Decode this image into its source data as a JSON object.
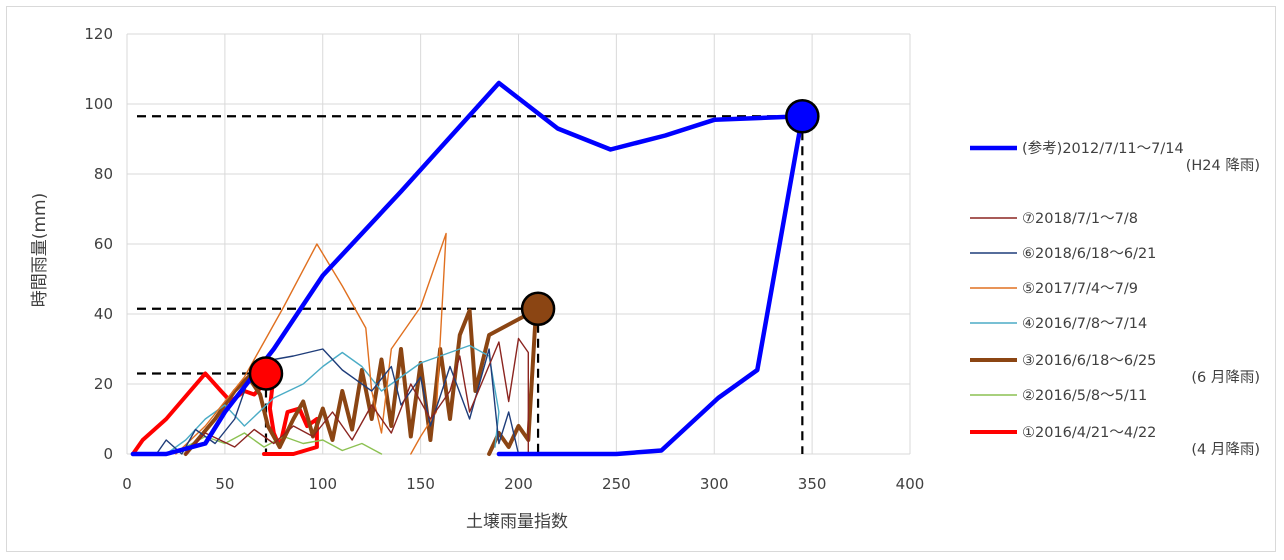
{
  "chart_data": {
    "type": "line",
    "title": "",
    "xlabel": "土壌雨量指数",
    "ylabel": "時間雨量(mm)",
    "xlim": [
      0,
      400
    ],
    "ylim": [
      0,
      120
    ],
    "x_ticks": [
      "0",
      "50",
      "100",
      "150",
      "200",
      "250",
      "300",
      "350",
      "400"
    ],
    "y_ticks": [
      "0",
      "20",
      "40",
      "60",
      "80",
      "100",
      "120"
    ],
    "grid": true,
    "legend_position": "right",
    "series": [
      {
        "name": "(参考)2012/7/11〜7/14",
        "note": "(H24 降雨)",
        "color": "#0000ff",
        "width": 4.5,
        "points": [
          [
            3,
            0
          ],
          [
            20,
            0
          ],
          [
            40,
            3
          ],
          [
            50,
            12
          ],
          [
            75,
            30
          ],
          [
            100,
            51
          ],
          [
            140,
            75
          ],
          [
            190,
            106
          ],
          [
            220,
            93
          ],
          [
            247,
            87
          ],
          [
            275,
            91
          ],
          [
            300,
            95.5
          ],
          [
            345,
            96.5
          ],
          [
            345,
            96.5
          ],
          [
            322,
            24
          ],
          [
            302,
            16
          ],
          [
            273,
            1
          ],
          [
            250,
            0
          ],
          [
            210,
            0
          ],
          [
            190,
            0
          ]
        ]
      },
      {
        "name": "⑦2018/7/1〜7/8",
        "color": "#8b2520",
        "width": 1.4,
        "points": [
          [
            30,
            0
          ],
          [
            40,
            6
          ],
          [
            55,
            2
          ],
          [
            65,
            7
          ],
          [
            75,
            3
          ],
          [
            85,
            8
          ],
          [
            95,
            5
          ],
          [
            105,
            12
          ],
          [
            115,
            4
          ],
          [
            125,
            14
          ],
          [
            135,
            6
          ],
          [
            145,
            20
          ],
          [
            155,
            10
          ],
          [
            165,
            18
          ],
          [
            170,
            28
          ],
          [
            175,
            12
          ],
          [
            190,
            32
          ],
          [
            195,
            15
          ],
          [
            200,
            33
          ],
          [
            205,
            29
          ],
          [
            205,
            0
          ]
        ]
      },
      {
        "name": "⑥2018/6/18〜6/21",
        "color": "#1f3d7a",
        "width": 1.4,
        "points": [
          [
            15,
            0
          ],
          [
            20,
            4
          ],
          [
            28,
            0
          ],
          [
            35,
            7
          ],
          [
            45,
            3
          ],
          [
            55,
            10
          ],
          [
            65,
            26
          ],
          [
            85,
            28
          ],
          [
            100,
            30
          ],
          [
            110,
            24
          ],
          [
            125,
            18
          ],
          [
            135,
            25
          ],
          [
            140,
            14
          ],
          [
            150,
            22
          ],
          [
            155,
            8
          ],
          [
            165,
            25
          ],
          [
            175,
            10
          ],
          [
            185,
            30
          ],
          [
            190,
            3
          ],
          [
            195,
            12
          ],
          [
            200,
            0
          ]
        ]
      },
      {
        "name": "⑤2017/7/4〜7/9",
        "color": "#e07020",
        "width": 1.4,
        "points": [
          [
            25,
            0
          ],
          [
            40,
            8
          ],
          [
            60,
            22
          ],
          [
            70,
            32
          ],
          [
            80,
            42
          ],
          [
            97,
            60
          ],
          [
            110,
            48
          ],
          [
            122,
            36
          ],
          [
            125,
            18
          ],
          [
            130,
            6
          ],
          [
            135,
            30
          ],
          [
            150,
            42
          ],
          [
            163,
            63
          ],
          [
            158,
            12
          ],
          [
            150,
            5
          ],
          [
            145,
            0
          ]
        ]
      },
      {
        "name": "④2016/7/8〜7/14",
        "color": "#4bacc6",
        "width": 1.4,
        "points": [
          [
            20,
            0
          ],
          [
            30,
            4
          ],
          [
            40,
            10
          ],
          [
            50,
            14
          ],
          [
            60,
            8
          ],
          [
            75,
            16
          ],
          [
            90,
            20
          ],
          [
            100,
            25
          ],
          [
            110,
            29
          ],
          [
            120,
            25
          ],
          [
            130,
            18
          ],
          [
            140,
            22
          ],
          [
            150,
            26
          ],
          [
            165,
            29
          ],
          [
            175,
            31
          ],
          [
            185,
            28
          ],
          [
            190,
            12
          ],
          [
            188,
            2
          ]
        ]
      },
      {
        "name": "③2016/6/18〜6/25",
        "note": "(6 月降雨)",
        "color": "#8b4513",
        "width": 4,
        "points": [
          [
            30,
            0
          ],
          [
            45,
            10
          ],
          [
            55,
            18
          ],
          [
            62,
            22
          ],
          [
            68,
            17
          ],
          [
            72,
            8
          ],
          [
            78,
            2
          ],
          [
            85,
            10
          ],
          [
            90,
            15
          ],
          [
            95,
            5
          ],
          [
            100,
            13
          ],
          [
            105,
            4
          ],
          [
            110,
            18
          ],
          [
            115,
            7
          ],
          [
            120,
            24
          ],
          [
            125,
            10
          ],
          [
            130,
            27
          ],
          [
            135,
            8
          ],
          [
            140,
            30
          ],
          [
            145,
            5
          ],
          [
            150,
            26
          ],
          [
            155,
            4
          ],
          [
            160,
            30
          ],
          [
            165,
            10
          ],
          [
            170,
            34
          ],
          [
            175,
            41
          ],
          [
            178,
            18
          ],
          [
            185,
            34
          ],
          [
            195,
            37
          ],
          [
            205,
            40
          ],
          [
            209,
            41.5
          ],
          [
            205,
            4
          ],
          [
            200,
            8
          ],
          [
            195,
            2
          ],
          [
            190,
            6
          ],
          [
            185,
            0
          ]
        ]
      },
      {
        "name": "②2016/5/8〜5/11",
        "color": "#8cc152",
        "width": 1.4,
        "points": [
          [
            20,
            0
          ],
          [
            30,
            2
          ],
          [
            40,
            5
          ],
          [
            50,
            3
          ],
          [
            60,
            6
          ],
          [
            70,
            2
          ],
          [
            80,
            5
          ],
          [
            90,
            3
          ],
          [
            100,
            4
          ],
          [
            110,
            1
          ],
          [
            120,
            3
          ],
          [
            130,
            0
          ]
        ]
      },
      {
        "name": "①2016/4/21〜4/22",
        "note": "(4 月降雨)",
        "color": "#ff0000",
        "width": 4,
        "points": [
          [
            3,
            0
          ],
          [
            8,
            4
          ],
          [
            20,
            10
          ],
          [
            40,
            23
          ],
          [
            48,
            18
          ],
          [
            53,
            15
          ],
          [
            60,
            18
          ],
          [
            65,
            17
          ],
          [
            70,
            20
          ],
          [
            72,
            23
          ],
          [
            75,
            23
          ],
          [
            73,
            13
          ],
          [
            75,
            6
          ],
          [
            78,
            2
          ],
          [
            82,
            12
          ],
          [
            88,
            13
          ],
          [
            92,
            8
          ],
          [
            97,
            10
          ],
          [
            97,
            2
          ],
          [
            85,
            0
          ],
          [
            70,
            0
          ]
        ]
      }
    ],
    "highlight_points": [
      {
        "x": 71,
        "y": 23,
        "color": "#ff0000"
      },
      {
        "x": 210,
        "y": 41.5,
        "color": "#8b4513"
      },
      {
        "x": 345,
        "y": 96.5,
        "color": "#0000ff"
      }
    ]
  }
}
